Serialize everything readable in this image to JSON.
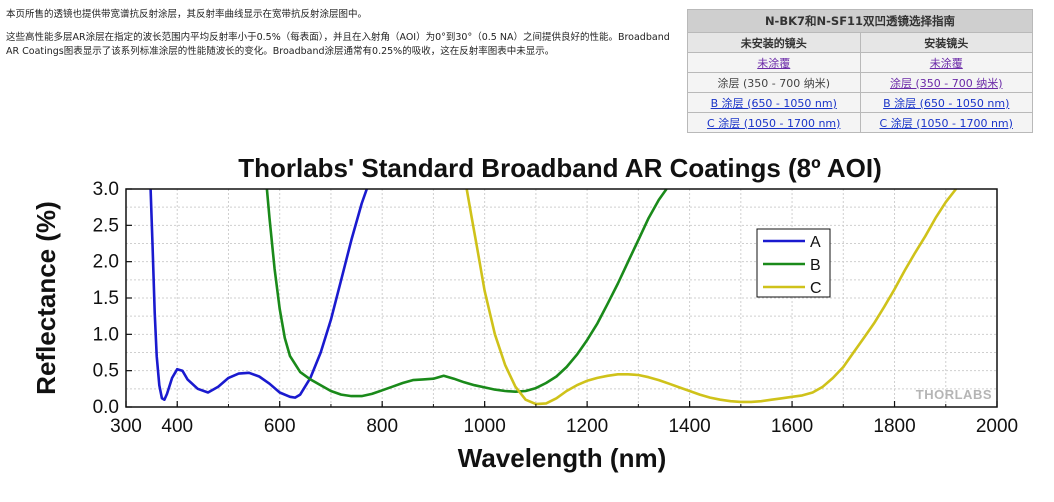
{
  "intro": {
    "p1": "本页所售的透镜也提供带宽谱抗反射涂层，其反射率曲线显示在宽带抗反射涂层图中。",
    "p2": "这些高性能多层AR涂层在指定的波长范围内平均反射率小于0.5%（每表面），并且在入射角（AOI）为0°到30°（0.5 NA）之间提供良好的性能。Broadband AR Coatings图表显示了该系列标准涂层的性能随波长的变化。Broadband涂层通常有0.25%的吸收，这在反射率图表中未显示。"
  },
  "guide": {
    "title": "N-BK7和N-SF11双凹透镜选择指南",
    "col1": "未安装的镜头",
    "col2": "安装镜头",
    "rows": [
      [
        "未涂覆",
        "未涂覆"
      ],
      [
        "涂层 (350 - 700 纳米)",
        "涂层 (350 - 700 纳米)"
      ],
      [
        "B 涂层 (650 - 1050 nm)",
        "B 涂层 (650 - 1050 nm)"
      ],
      [
        "C 涂层 (1050 - 1700 nm)",
        "C 涂层 (1050 - 1700 nm)"
      ]
    ]
  },
  "chart_data": {
    "type": "line",
    "title": "Thorlabs' Standard Broadband AR Coatings (8º AOI)",
    "xlabel": "Wavelength (nm)",
    "ylabel": "Reflectance (%)",
    "xlim": [
      300,
      2000
    ],
    "ylim": [
      0,
      3.0
    ],
    "xticks": [
      "300",
      "400",
      "600",
      "800",
      "1000",
      "1200",
      "1400",
      "1600",
      "1800",
      "2000"
    ],
    "yticks": [
      "0.0",
      "0.5",
      "1.0",
      "1.5",
      "2.0",
      "2.5",
      "3.0"
    ],
    "grid": true,
    "legend": "upper-right",
    "watermark": "THORLABS",
    "series": [
      {
        "name": "A",
        "color": "#1a1acf",
        "x": [
          348,
          352,
          356,
          360,
          365,
          370,
          375,
          380,
          390,
          400,
          410,
          420,
          440,
          460,
          480,
          500,
          520,
          540,
          560,
          580,
          600,
          620,
          630,
          640,
          660,
          680,
          700,
          720,
          740,
          760,
          770
        ],
        "y": [
          3.0,
          2.2,
          1.3,
          0.7,
          0.3,
          0.12,
          0.1,
          0.18,
          0.4,
          0.52,
          0.5,
          0.38,
          0.25,
          0.2,
          0.28,
          0.4,
          0.46,
          0.47,
          0.42,
          0.32,
          0.2,
          0.14,
          0.13,
          0.17,
          0.4,
          0.75,
          1.2,
          1.75,
          2.3,
          2.8,
          3.0
        ]
      },
      {
        "name": "B",
        "color": "#1a8a1a",
        "x": [
          575,
          580,
          590,
          600,
          610,
          620,
          640,
          660,
          680,
          700,
          720,
          740,
          760,
          780,
          800,
          820,
          840,
          860,
          880,
          900,
          920,
          940,
          960,
          980,
          1000,
          1020,
          1040,
          1060,
          1080,
          1100,
          1120,
          1140,
          1160,
          1180,
          1200,
          1220,
          1240,
          1260,
          1280,
          1300,
          1320,
          1340,
          1355
        ],
        "y": [
          3.0,
          2.6,
          1.9,
          1.35,
          0.95,
          0.7,
          0.48,
          0.38,
          0.3,
          0.22,
          0.17,
          0.15,
          0.15,
          0.18,
          0.23,
          0.28,
          0.33,
          0.37,
          0.38,
          0.39,
          0.43,
          0.39,
          0.34,
          0.3,
          0.27,
          0.24,
          0.22,
          0.21,
          0.22,
          0.26,
          0.33,
          0.42,
          0.55,
          0.72,
          0.92,
          1.15,
          1.42,
          1.7,
          2.0,
          2.3,
          2.6,
          2.85,
          3.0
        ]
      },
      {
        "name": "C",
        "color": "#cfc21a",
        "x": [
          965,
          975,
          985,
          1000,
          1020,
          1040,
          1060,
          1080,
          1100,
          1120,
          1140,
          1160,
          1180,
          1200,
          1220,
          1240,
          1260,
          1280,
          1300,
          1320,
          1340,
          1360,
          1380,
          1400,
          1420,
          1440,
          1460,
          1480,
          1500,
          1520,
          1540,
          1560,
          1580,
          1600,
          1620,
          1640,
          1660,
          1680,
          1700,
          1720,
          1740,
          1760,
          1780,
          1800,
          1820,
          1840,
          1860,
          1880,
          1900,
          1920
        ],
        "y": [
          3.0,
          2.6,
          2.2,
          1.6,
          1.0,
          0.58,
          0.28,
          0.1,
          0.04,
          0.05,
          0.12,
          0.22,
          0.3,
          0.36,
          0.4,
          0.43,
          0.45,
          0.45,
          0.44,
          0.41,
          0.37,
          0.32,
          0.27,
          0.22,
          0.17,
          0.13,
          0.1,
          0.08,
          0.07,
          0.07,
          0.08,
          0.1,
          0.12,
          0.14,
          0.16,
          0.2,
          0.28,
          0.4,
          0.55,
          0.75,
          0.95,
          1.15,
          1.38,
          1.62,
          1.88,
          2.12,
          2.35,
          2.6,
          2.82,
          3.0
        ]
      }
    ]
  }
}
